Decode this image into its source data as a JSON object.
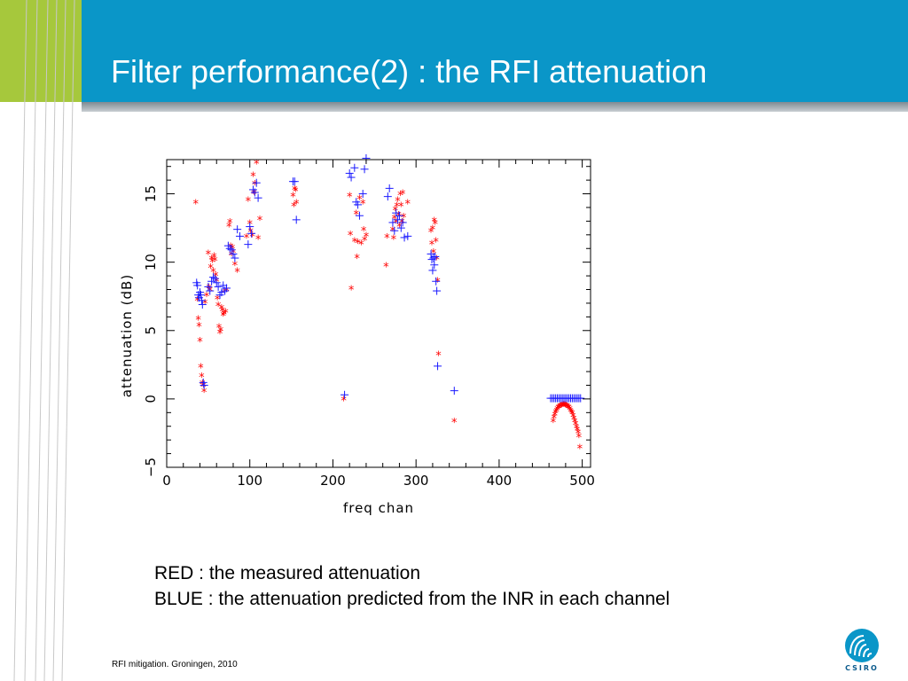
{
  "slide": {
    "title": "Filter performance(2) :  the RFI attenuation",
    "caption_lines": [
      "RED :  the measured attenuation",
      "BLUE : the attenuation predicted from the INR in each channel"
    ],
    "footer": "RFI mitigation.  Groningen, 2010",
    "logo_text": "CSIRO"
  },
  "colors": {
    "header_blue": "#0a96c8",
    "accent_green": "#a6c83c",
    "measured_red": "#ff0000",
    "predicted_blue": "#1a1aff"
  },
  "chart_data": {
    "type": "scatter",
    "title": "",
    "xlabel": "freq chan",
    "ylabel": "attenuation (dB)",
    "xlim": [
      0,
      510
    ],
    "ylim": [
      -5,
      17.5
    ],
    "xticks": [
      "0",
      "100",
      "200",
      "300",
      "400",
      "500"
    ],
    "xtick_values": [
      0,
      100,
      200,
      300,
      400,
      500
    ],
    "yticks": [
      "−5",
      "0",
      "5",
      "10",
      "15"
    ],
    "ytick_values": [
      -5,
      0,
      5,
      10,
      15
    ],
    "series": [
      {
        "name": "RED",
        "marker": "asterisk",
        "color": "#ff0000",
        "points": [
          [
            35,
            14.3
          ],
          [
            37,
            7.2
          ],
          [
            38,
            5.8
          ],
          [
            39,
            5.3
          ],
          [
            40,
            4.2
          ],
          [
            41,
            2.3
          ],
          [
            42,
            1.6
          ],
          [
            43,
            1.1
          ],
          [
            44,
            0.9
          ],
          [
            45,
            0.5
          ],
          [
            46,
            7.0
          ],
          [
            48,
            7.5
          ],
          [
            50,
            10.6
          ],
          [
            51,
            8.1
          ],
          [
            52,
            7.9
          ],
          [
            53,
            9.6
          ],
          [
            54,
            10.2
          ],
          [
            55,
            10.0
          ],
          [
            56,
            9.3
          ],
          [
            57,
            10.4
          ],
          [
            58,
            10.1
          ],
          [
            59,
            9.0
          ],
          [
            60,
            8.6
          ],
          [
            61,
            7.3
          ],
          [
            62,
            6.8
          ],
          [
            63,
            5.2
          ],
          [
            64,
            4.8
          ],
          [
            65,
            5.0
          ],
          [
            66,
            6.6
          ],
          [
            67,
            6.4
          ],
          [
            68,
            6.1
          ],
          [
            69,
            6.2
          ],
          [
            70,
            7.8
          ],
          [
            71,
            6.3
          ],
          [
            72,
            7.9
          ],
          [
            75,
            12.6
          ],
          [
            76,
            12.9
          ],
          [
            77,
            11.1
          ],
          [
            78,
            10.5
          ],
          [
            79,
            11.0
          ],
          [
            80,
            10.7
          ],
          [
            82,
            9.8
          ],
          [
            85,
            9.3
          ],
          [
            96,
            11.8
          ],
          [
            98,
            14.5
          ],
          [
            100,
            12.8
          ],
          [
            101,
            12.2
          ],
          [
            103,
            11.9
          ],
          [
            104,
            16.3
          ],
          [
            105,
            15.0
          ],
          [
            106,
            15.7
          ],
          [
            108,
            17.2
          ],
          [
            110,
            11.7
          ],
          [
            112,
            13.1
          ],
          [
            152,
            14.8
          ],
          [
            153,
            14.1
          ],
          [
            154,
            15.3
          ],
          [
            155,
            15.2
          ],
          [
            156,
            14.3
          ],
          [
            213,
            -0.1
          ],
          [
            220,
            14.8
          ],
          [
            221,
            12.0
          ],
          [
            222,
            8.0
          ],
          [
            226,
            11.5
          ],
          [
            228,
            13.5
          ],
          [
            229,
            10.3
          ],
          [
            230,
            11.4
          ],
          [
            232,
            14.6
          ],
          [
            234,
            11.3
          ],
          [
            236,
            14.3
          ],
          [
            237,
            12.3
          ],
          [
            238,
            11.6
          ],
          [
            240,
            11.9
          ],
          [
            264,
            9.7
          ],
          [
            265,
            11.8
          ],
          [
            272,
            12.3
          ],
          [
            273,
            11.7
          ],
          [
            274,
            13.2
          ],
          [
            275,
            13.8
          ],
          [
            276,
            12.9
          ],
          [
            277,
            14.1
          ],
          [
            278,
            14.5
          ],
          [
            279,
            13.4
          ],
          [
            280,
            12.6
          ],
          [
            281,
            14.9
          ],
          [
            282,
            14.1
          ],
          [
            283,
            12.9
          ],
          [
            284,
            15.0
          ],
          [
            285,
            13.3
          ],
          [
            290,
            14.3
          ],
          [
            318,
            12.2
          ],
          [
            319,
            11.3
          ],
          [
            320,
            12.4
          ],
          [
            321,
            10.7
          ],
          [
            322,
            13.0
          ],
          [
            323,
            12.8
          ],
          [
            324,
            11.5
          ],
          [
            325,
            10.2
          ],
          [
            326,
            8.6
          ],
          [
            327,
            3.2
          ],
          [
            346,
            -1.7
          ],
          [
            465,
            -1.7
          ],
          [
            466,
            -1.4
          ],
          [
            467,
            -1.2
          ],
          [
            468,
            -1.0
          ],
          [
            469,
            -0.9
          ],
          [
            470,
            -0.8
          ],
          [
            471,
            -0.7
          ],
          [
            472,
            -0.65
          ],
          [
            473,
            -0.6
          ],
          [
            474,
            -0.55
          ],
          [
            475,
            -0.55
          ],
          [
            476,
            -0.5
          ],
          [
            477,
            -0.5
          ],
          [
            478,
            -0.5
          ],
          [
            479,
            -0.5
          ],
          [
            480,
            -0.55
          ],
          [
            481,
            -0.55
          ],
          [
            482,
            -0.6
          ],
          [
            483,
            -0.65
          ],
          [
            484,
            -0.7
          ],
          [
            485,
            -0.8
          ],
          [
            486,
            -0.9
          ],
          [
            487,
            -1.0
          ],
          [
            488,
            -1.1
          ],
          [
            489,
            -1.3
          ],
          [
            490,
            -1.5
          ],
          [
            491,
            -1.7
          ],
          [
            492,
            -1.9
          ],
          [
            493,
            -2.1
          ],
          [
            494,
            -2.3
          ],
          [
            495,
            -2.5
          ],
          [
            496,
            -2.8
          ],
          [
            497,
            -3.6
          ]
        ]
      },
      {
        "name": "BLUE",
        "marker": "plus",
        "color": "#1a1aff",
        "points": [
          [
            36,
            8.5
          ],
          [
            37,
            8.3
          ],
          [
            38,
            7.6
          ],
          [
            39,
            7.4
          ],
          [
            40,
            7.8
          ],
          [
            41,
            7.6
          ],
          [
            42,
            7.2
          ],
          [
            43,
            6.9
          ],
          [
            44,
            1.2
          ],
          [
            45,
            1.0
          ],
          [
            50,
            8.2
          ],
          [
            52,
            7.9
          ],
          [
            54,
            8.6
          ],
          [
            56,
            8.9
          ],
          [
            58,
            8.8
          ],
          [
            60,
            8.5
          ],
          [
            62,
            8.2
          ],
          [
            64,
            7.6
          ],
          [
            66,
            7.8
          ],
          [
            68,
            8.3
          ],
          [
            70,
            7.9
          ],
          [
            72,
            8.1
          ],
          [
            74,
            11.2
          ],
          [
            76,
            11.0
          ],
          [
            78,
            10.9
          ],
          [
            80,
            10.6
          ],
          [
            82,
            10.3
          ],
          [
            85,
            12.4
          ],
          [
            88,
            11.9
          ],
          [
            98,
            11.3
          ],
          [
            100,
            12.6
          ],
          [
            102,
            12.1
          ],
          [
            104,
            15.3
          ],
          [
            106,
            15.1
          ],
          [
            108,
            15.8
          ],
          [
            110,
            14.7
          ],
          [
            152,
            15.9
          ],
          [
            154,
            15.9
          ],
          [
            156,
            13.1
          ],
          [
            214,
            0.3
          ],
          [
            220,
            16.5
          ],
          [
            222,
            16.2
          ],
          [
            226,
            16.9
          ],
          [
            228,
            14.4
          ],
          [
            230,
            14.2
          ],
          [
            232,
            13.4
          ],
          [
            236,
            15.0
          ],
          [
            238,
            16.8
          ],
          [
            240,
            17.6
          ],
          [
            266,
            14.8
          ],
          [
            268,
            15.4
          ],
          [
            272,
            12.9
          ],
          [
            274,
            12.3
          ],
          [
            276,
            13.6
          ],
          [
            278,
            13.1
          ],
          [
            280,
            13.4
          ],
          [
            282,
            12.5
          ],
          [
            284,
            12.9
          ],
          [
            286,
            11.8
          ],
          [
            290,
            11.9
          ],
          [
            318,
            10.6
          ],
          [
            319,
            10.2
          ],
          [
            320,
            9.4
          ],
          [
            321,
            10.3
          ],
          [
            322,
            9.8
          ],
          [
            323,
            10.4
          ],
          [
            324,
            8.6
          ],
          [
            325,
            7.9
          ],
          [
            326,
            2.4
          ],
          [
            346,
            0.6
          ],
          [
            462,
            0.05
          ],
          [
            464,
            0.05
          ],
          [
            466,
            0.05
          ],
          [
            468,
            0.05
          ],
          [
            470,
            0.05
          ],
          [
            472,
            0.05
          ],
          [
            474,
            0.05
          ],
          [
            476,
            0.05
          ],
          [
            478,
            0.05
          ],
          [
            480,
            0.05
          ],
          [
            482,
            0.05
          ],
          [
            484,
            0.05
          ],
          [
            486,
            0.05
          ],
          [
            488,
            0.05
          ],
          [
            490,
            0.05
          ],
          [
            492,
            0.05
          ],
          [
            494,
            0.05
          ],
          [
            496,
            0.05
          ],
          [
            498,
            0.05
          ]
        ]
      }
    ],
    "grid": false,
    "legend": "none"
  }
}
